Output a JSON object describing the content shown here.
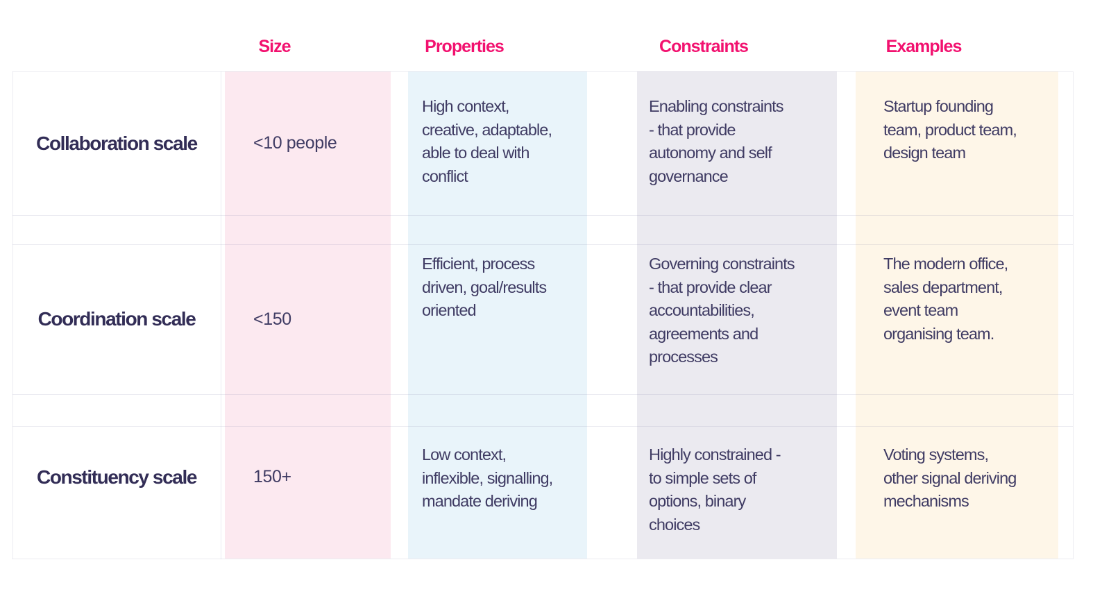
{
  "colors": {
    "header_pink": "#f2116f",
    "size_band": "#fce9f0",
    "properties_band": "#e9f4fa",
    "constraints_band": "#ebeaf0",
    "examples_band": "#fef6e8",
    "label_text": "#322d56",
    "body_text": "#3f3b63"
  },
  "chart_data": {
    "type": "table",
    "column_headers": [
      "Size",
      "Properties",
      "Constraints",
      "Examples"
    ],
    "rows": [
      {
        "label": "Collaboration scale",
        "size": "<10 people",
        "properties": "High context,\ncreative, adaptable,\nable to deal with\nconflict",
        "constraints": "Enabling constraints\n- that provide\nautonomy and self\ngovernance",
        "examples": "Startup founding\nteam, product team,\ndesign team"
      },
      {
        "label": "Coordination scale",
        "size": "<150",
        "properties": "Efficient, process\ndriven, goal/results\noriented",
        "constraints": "Governing constraints\n- that provide clear\naccountabilities,\nagreements and\nprocesses",
        "examples": "The modern office,\nsales department,\nevent team\norganising team."
      },
      {
        "label": "Constituency scale",
        "size": "150+",
        "properties": "Low context,\ninflexible, signalling,\nmandate deriving",
        "constraints": "Highly constrained -\nto simple sets of\noptions, binary\nchoices",
        "examples": "Voting systems,\nother signal deriving\nmechanisms"
      }
    ]
  }
}
